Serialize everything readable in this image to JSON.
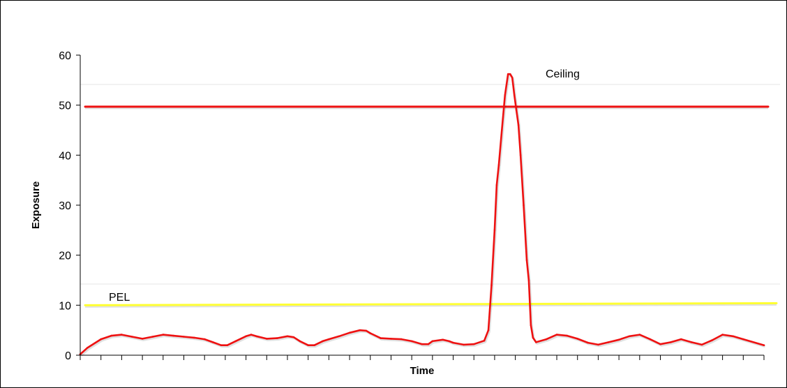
{
  "chart_data": {
    "type": "line",
    "title": "",
    "xlabel": "Time",
    "ylabel": "Exposure",
    "ylim": [
      0,
      60
    ],
    "yticks": [
      "0",
      "10",
      "20",
      "30",
      "40",
      "50",
      "60"
    ],
    "xlim": [
      0,
      33
    ],
    "x_minor_ticks": 33,
    "grid": false,
    "legend": "none",
    "series": [
      {
        "color": "#ee1111",
        "points": [
          [
            0,
            0.2
          ],
          [
            0.35,
            1.5
          ],
          [
            1,
            3.2
          ],
          [
            1.5,
            3.9
          ],
          [
            2,
            4.1
          ],
          [
            2.5,
            3.7
          ],
          [
            3,
            3.3
          ],
          [
            3.5,
            3.7
          ],
          [
            4,
            4.1
          ],
          [
            4.5,
            3.9
          ],
          [
            5,
            3.7
          ],
          [
            5.5,
            3.5
          ],
          [
            6,
            3.2
          ],
          [
            6.4,
            2.6
          ],
          [
            6.8,
            2.0
          ],
          [
            7.1,
            2.0
          ],
          [
            7.5,
            2.8
          ],
          [
            8,
            3.8
          ],
          [
            8.25,
            4.1
          ],
          [
            8.5,
            3.8
          ],
          [
            9,
            3.3
          ],
          [
            9.5,
            3.4
          ],
          [
            10,
            3.8
          ],
          [
            10.3,
            3.6
          ],
          [
            10.6,
            2.8
          ],
          [
            11,
            2.0
          ],
          [
            11.3,
            2.0
          ],
          [
            11.7,
            2.8
          ],
          [
            12,
            3.2
          ],
          [
            12.5,
            3.8
          ],
          [
            13,
            4.5
          ],
          [
            13.5,
            5.0
          ],
          [
            13.8,
            4.9
          ],
          [
            14,
            4.4
          ],
          [
            14.5,
            3.4
          ],
          [
            15,
            3.3
          ],
          [
            15.5,
            3.2
          ],
          [
            16,
            2.8
          ],
          [
            16.5,
            2.2
          ],
          [
            16.8,
            2.2
          ],
          [
            17,
            2.8
          ],
          [
            17.5,
            3.1
          ],
          [
            17.8,
            2.8
          ],
          [
            18,
            2.5
          ],
          [
            18.5,
            2.1
          ],
          [
            19,
            2.2
          ],
          [
            19.5,
            2.9
          ],
          [
            19.7,
            5
          ],
          [
            19.85,
            14
          ],
          [
            20,
            25
          ],
          [
            20.1,
            34
          ],
          [
            20.2,
            38
          ],
          [
            20.35,
            45
          ],
          [
            20.5,
            52
          ],
          [
            20.65,
            56.2
          ],
          [
            20.75,
            56.2
          ],
          [
            20.85,
            55.5
          ],
          [
            20.95,
            52
          ],
          [
            21.05,
            49
          ],
          [
            21.15,
            46
          ],
          [
            21.25,
            40
          ],
          [
            21.4,
            30
          ],
          [
            21.55,
            19
          ],
          [
            21.65,
            15
          ],
          [
            21.75,
            6
          ],
          [
            21.85,
            3.5
          ],
          [
            22,
            2.6
          ],
          [
            22.5,
            3.2
          ],
          [
            23,
            4.1
          ],
          [
            23.5,
            3.9
          ],
          [
            24,
            3.3
          ],
          [
            24.5,
            2.5
          ],
          [
            25,
            2.1
          ],
          [
            25.5,
            2.6
          ],
          [
            26,
            3.1
          ],
          [
            26.5,
            3.8
          ],
          [
            27,
            4.1
          ],
          [
            27.5,
            3.2
          ],
          [
            28,
            2.2
          ],
          [
            28.5,
            2.6
          ],
          [
            29,
            3.2
          ],
          [
            29.5,
            2.6
          ],
          [
            30,
            2.1
          ],
          [
            30.5,
            3.0
          ],
          [
            31,
            4.1
          ],
          [
            31.5,
            3.8
          ],
          [
            32,
            3.2
          ],
          [
            33,
            2.0
          ]
        ]
      }
    ],
    "reference_lines": [
      {
        "label": "Ceiling",
        "color": "#ee1111",
        "y_start": 49.7,
        "y_end": 49.7
      },
      {
        "label": "PEL",
        "color": "#ffff33",
        "y_start": 10.0,
        "y_end": 10.4
      }
    ]
  }
}
